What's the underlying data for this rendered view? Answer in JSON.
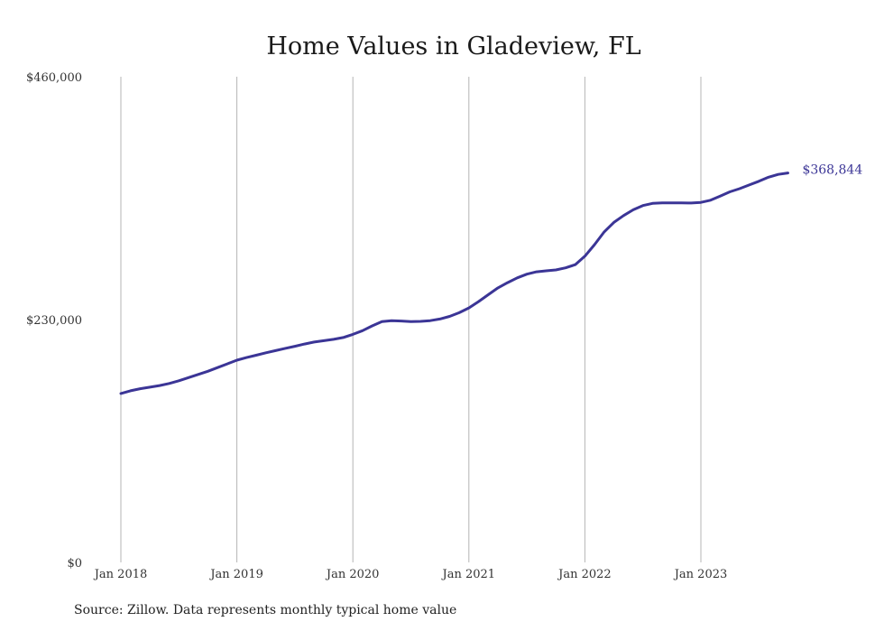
{
  "chart_data": {
    "type": "line",
    "title": "Home Values in Gladeview, FL",
    "xlabel": "",
    "ylabel": "",
    "x_tick_labels": [
      "Jan 2018",
      "Jan 2019",
      "Jan 2020",
      "Jan 2021",
      "Jan 2022",
      "Jan 2023"
    ],
    "y_tick_labels": [
      "$0",
      "$230,000",
      "$460,000"
    ],
    "ylim": [
      0,
      460000
    ],
    "xlim": [
      "2018-01",
      "2023-10"
    ],
    "grid": "vertical",
    "line_color": "#3b3596",
    "end_label": "$368,844",
    "series": [
      {
        "x": [
          "2018-01",
          "2018-02",
          "2018-03",
          "2018-04",
          "2018-05",
          "2018-06",
          "2018-07",
          "2018-08",
          "2018-09",
          "2018-10",
          "2018-11",
          "2018-12",
          "2019-01",
          "2019-02",
          "2019-03",
          "2019-04",
          "2019-05",
          "2019-06",
          "2019-07",
          "2019-08",
          "2019-09",
          "2019-10",
          "2019-11",
          "2019-12",
          "2020-01",
          "2020-02",
          "2020-03",
          "2020-04",
          "2020-05",
          "2020-06",
          "2020-07",
          "2020-08",
          "2020-09",
          "2020-10",
          "2020-11",
          "2020-12",
          "2021-01",
          "2021-02",
          "2021-03",
          "2021-04",
          "2021-05",
          "2021-06",
          "2021-07",
          "2021-08",
          "2021-09",
          "2021-10",
          "2021-11",
          "2021-12",
          "2022-01",
          "2022-02",
          "2022-03",
          "2022-04",
          "2022-05",
          "2022-06",
          "2022-07",
          "2022-08",
          "2022-09",
          "2022-10",
          "2022-11",
          "2022-12",
          "2023-01",
          "2023-02",
          "2023-03",
          "2023-04",
          "2023-05",
          "2023-06",
          "2023-07",
          "2023-08",
          "2023-09",
          "2023-10"
        ],
        "values": [
          160000,
          162500,
          164500,
          166000,
          167500,
          169500,
          172000,
          175000,
          178000,
          181000,
          184500,
          188000,
          191500,
          194000,
          196200,
          198500,
          200600,
          202700,
          204700,
          206800,
          208700,
          210000,
          211300,
          213000,
          216000,
          219500,
          224000,
          228000,
          229000,
          228600,
          228000,
          228300,
          229000,
          230500,
          233000,
          236500,
          241000,
          247000,
          253500,
          260000,
          265000,
          269500,
          273000,
          275200,
          276200,
          277000,
          279000,
          282000,
          290000,
          301000,
          313000,
          322000,
          328500,
          334000,
          338000,
          340000,
          340500,
          340500,
          340500,
          340400,
          341000,
          343000,
          347000,
          351000,
          354000,
          357500,
          361000,
          364800,
          367500,
          368844
        ]
      }
    ]
  },
  "source_text": "Source: Zillow. Data represents monthly typical home value"
}
